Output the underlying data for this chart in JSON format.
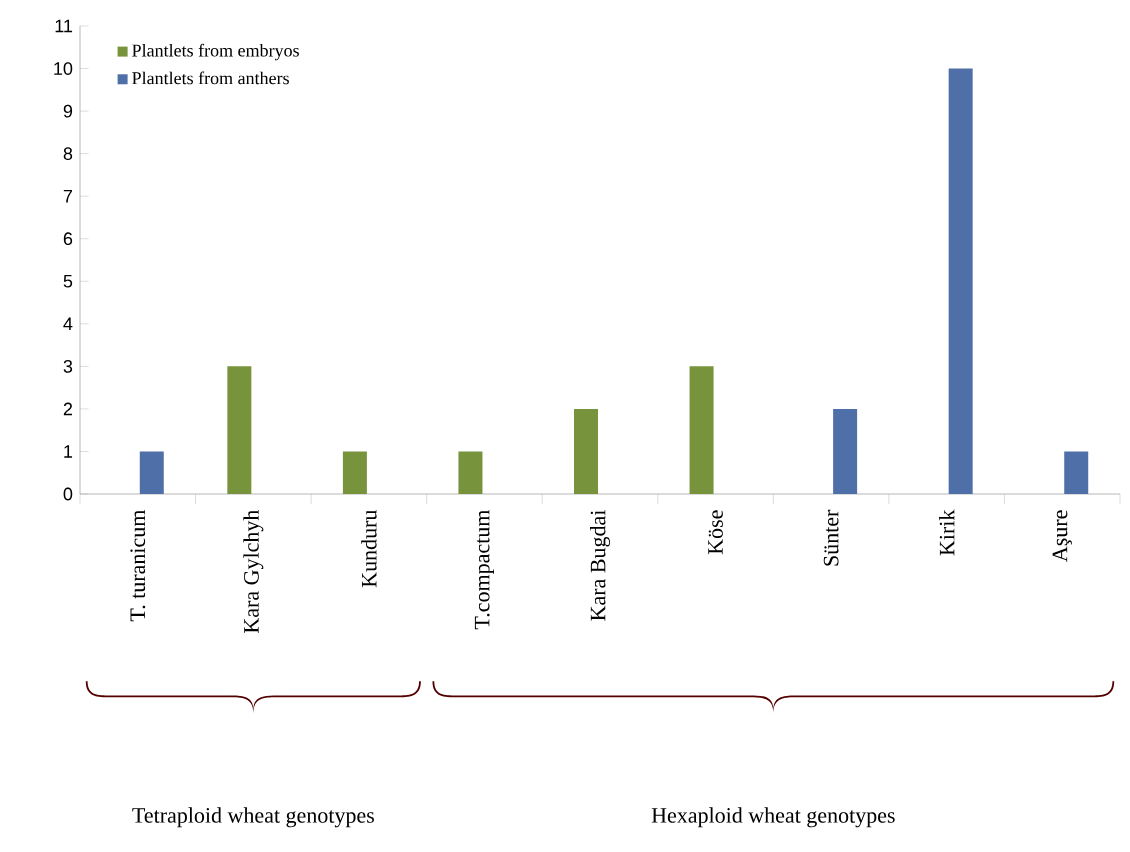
{
  "chart_data": {
    "type": "bar",
    "categories": [
      "T. turanicum",
      "Kara Gylchyh",
      "Kunduru",
      "T.compactum",
      "Kara Bugdai",
      "Köse",
      "Sünter",
      "Kirik",
      "Aşure"
    ],
    "series": [
      {
        "name": "Plantlets from embryos",
        "color": "#77933c",
        "values": [
          null,
          3,
          1,
          1,
          2,
          3,
          null,
          null,
          null
        ]
      },
      {
        "name": "Plantlets from anthers",
        "color": "#4f6fa8",
        "values": [
          1,
          null,
          null,
          null,
          null,
          null,
          2,
          10,
          1
        ]
      }
    ],
    "ylim": [
      0,
      11
    ],
    "yticks": [
      0,
      1,
      2,
      3,
      4,
      5,
      6,
      7,
      8,
      9,
      10,
      11
    ],
    "legend": "top left",
    "grid": false,
    "annotations": [
      "Tetraploid wheat genotypes",
      "Hexaploid wheat genotypes"
    ]
  }
}
